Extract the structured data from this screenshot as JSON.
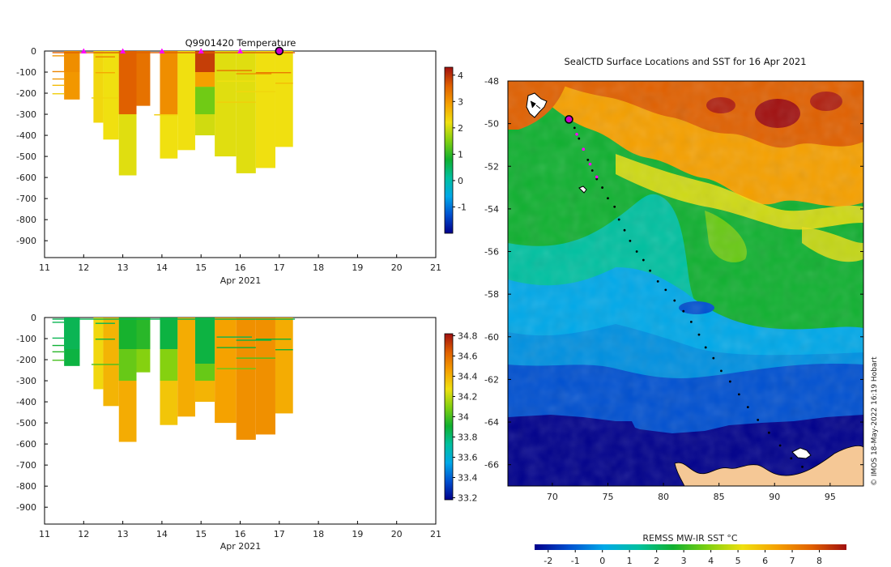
{
  "chart_data": [
    {
      "type": "heatmap",
      "id": "temp",
      "title": "Q9901420  Temperature",
      "xlabel": "Apr 2021",
      "xlim": [
        11,
        21
      ],
      "ylim": [
        -980,
        0
      ],
      "x_ticks": [
        11,
        12,
        13,
        14,
        15,
        16,
        17,
        18,
        19,
        20,
        21
      ],
      "y_ticks": [
        0,
        -100,
        -200,
        -300,
        -400,
        -500,
        -600,
        -700,
        -800,
        -900
      ],
      "colorbar": {
        "min": -2,
        "max": 4.3,
        "ticks": [
          4,
          3,
          2,
          1,
          0,
          -1
        ],
        "stops": [
          "#00008b",
          "#0050d0",
          "#00a8e8",
          "#00c0a0",
          "#10b030",
          "#80d010",
          "#f0e010",
          "#f5a000",
          "#e06000",
          "#a01010"
        ]
      },
      "surface_markers": [
        12,
        13,
        14,
        15,
        16
      ],
      "current_marker": 17,
      "columns": [
        {
          "x0": 11.5,
          "x1": 11.9,
          "depth": 230,
          "value": 3.0
        },
        {
          "x0": 12.25,
          "x1": 12.5,
          "depth": 340,
          "value": 2.3
        },
        {
          "x0": 12.5,
          "x1": 12.9,
          "depth": 420,
          "value": 2.2
        },
        {
          "x0": 12.9,
          "x1": 13.35,
          "depth": 590,
          "value": 2.1
        },
        {
          "x0": 13.35,
          "x1": 13.7,
          "depth": 260,
          "value": 3.4
        },
        {
          "x0": 13.95,
          "x1": 14.4,
          "depth": 510,
          "value": 2.2
        },
        {
          "x0": 14.4,
          "x1": 14.85,
          "depth": 470,
          "value": 2.2
        },
        {
          "x0": 14.85,
          "x1": 15.35,
          "depth": 400,
          "value": 2.0
        },
        {
          "x0": 15.35,
          "x1": 15.9,
          "depth": 500,
          "value": 2.1
        },
        {
          "x0": 15.9,
          "x1": 16.4,
          "depth": 580,
          "value": 2.1
        },
        {
          "x0": 16.4,
          "x1": 16.9,
          "depth": 555,
          "value": 2.2
        },
        {
          "x0": 16.9,
          "x1": 17.35,
          "depth": 455,
          "value": 2.2
        }
      ],
      "upper_patches": [
        {
          "x0": 12.9,
          "x1": 13.35,
          "d0": 0,
          "d1": 300,
          "value": 3.6
        },
        {
          "x0": 13.95,
          "x1": 14.4,
          "d0": 0,
          "d1": 300,
          "value": 3.1
        },
        {
          "x0": 14.85,
          "x1": 15.35,
          "d0": 0,
          "d1": 100,
          "value": 3.9
        },
        {
          "x0": 14.85,
          "x1": 15.35,
          "d0": 100,
          "d1": 170,
          "value": 2.9
        },
        {
          "x0": 14.85,
          "x1": 15.35,
          "d0": 170,
          "d1": 300,
          "value": 1.4
        },
        {
          "x0": 11.5,
          "x1": 11.9,
          "d0": 0,
          "d1": 100,
          "value": 3.1
        }
      ],
      "profile_lines": [
        {
          "x0": 11.2,
          "x1": 11.5,
          "depth": 20,
          "value": 3.0
        },
        {
          "x0": 11.2,
          "x1": 11.5,
          "depth": 95,
          "value": 3.2
        },
        {
          "x0": 11.2,
          "x1": 11.5,
          "depth": 130,
          "value": 3.0
        },
        {
          "x0": 11.2,
          "x1": 11.5,
          "depth": 160,
          "value": 2.6
        },
        {
          "x0": 11.2,
          "x1": 11.5,
          "depth": 200,
          "value": 2.4
        },
        {
          "x0": 12.3,
          "x1": 12.8,
          "depth": 25,
          "value": 3.2
        },
        {
          "x0": 12.3,
          "x1": 12.8,
          "depth": 100,
          "value": 2.8
        },
        {
          "x0": 12.2,
          "x1": 12.9,
          "depth": 220,
          "value": 2.3
        },
        {
          "x0": 15.4,
          "x1": 16.3,
          "depth": 90,
          "value": 3.4
        },
        {
          "x0": 15.9,
          "x1": 16.8,
          "depth": 105,
          "value": 3.1
        },
        {
          "x0": 16.4,
          "x1": 17.3,
          "depth": 100,
          "value": 3.3
        },
        {
          "x0": 16.9,
          "x1": 17.35,
          "depth": 150,
          "value": 2.6
        },
        {
          "x0": 15.4,
          "x1": 16.4,
          "depth": 140,
          "value": 2.2
        },
        {
          "x0": 15.9,
          "x1": 16.9,
          "depth": 190,
          "value": 2.3
        },
        {
          "x0": 13.8,
          "x1": 14.4,
          "depth": 300,
          "value": 2.4
        },
        {
          "x0": 15.4,
          "x1": 16.4,
          "depth": 240,
          "value": 2.4
        },
        {
          "x0": 11.2,
          "x1": 17.4,
          "depth": 5,
          "value": 3.6
        }
      ]
    },
    {
      "type": "heatmap",
      "id": "sal",
      "title": "",
      "xlabel": "Apr 2021",
      "xlim": [
        11,
        21
      ],
      "ylim": [
        -980,
        0
      ],
      "x_ticks": [
        11,
        12,
        13,
        14,
        15,
        16,
        17,
        18,
        19,
        20,
        21
      ],
      "y_ticks": [
        0,
        -100,
        -200,
        -300,
        -400,
        -500,
        -600,
        -700,
        -800,
        -900
      ],
      "colorbar": {
        "min": 33.18,
        "max": 34.82,
        "ticks": [
          34.8,
          34.6,
          34.4,
          34.2,
          34,
          33.8,
          33.6,
          33.4,
          33.2
        ],
        "stops": [
          "#00008b",
          "#0050d0",
          "#00a8e8",
          "#00c0a0",
          "#10b030",
          "#80d010",
          "#f0e010",
          "#f5a000",
          "#e06000",
          "#a01010"
        ]
      },
      "columns": [
        {
          "x0": 11.5,
          "x1": 11.9,
          "depth": 230,
          "value": 33.88
        },
        {
          "x0": 12.25,
          "x1": 12.5,
          "depth": 340,
          "value": 34.3
        },
        {
          "x0": 12.5,
          "x1": 12.9,
          "depth": 420,
          "value": 34.4
        },
        {
          "x0": 12.9,
          "x1": 13.35,
          "depth": 590,
          "value": 34.42
        },
        {
          "x0": 13.35,
          "x1": 13.7,
          "depth": 260,
          "value": 34.1
        },
        {
          "x0": 13.95,
          "x1": 14.4,
          "depth": 510,
          "value": 34.35
        },
        {
          "x0": 14.4,
          "x1": 14.85,
          "depth": 470,
          "value": 34.42
        },
        {
          "x0": 14.85,
          "x1": 15.35,
          "depth": 400,
          "value": 34.4
        },
        {
          "x0": 15.35,
          "x1": 15.9,
          "depth": 500,
          "value": 34.45
        },
        {
          "x0": 15.9,
          "x1": 16.4,
          "depth": 580,
          "value": 34.5
        },
        {
          "x0": 16.4,
          "x1": 16.9,
          "depth": 555,
          "value": 34.5
        },
        {
          "x0": 16.9,
          "x1": 17.35,
          "depth": 455,
          "value": 34.42
        }
      ],
      "upper_patches": [
        {
          "x0": 12.9,
          "x1": 13.35,
          "d0": 0,
          "d1": 150,
          "value": 33.92
        },
        {
          "x0": 12.9,
          "x1": 13.35,
          "d0": 150,
          "d1": 300,
          "value": 34.05
        },
        {
          "x0": 13.35,
          "x1": 13.7,
          "d0": 0,
          "d1": 150,
          "value": 33.95
        },
        {
          "x0": 13.95,
          "x1": 14.4,
          "d0": 0,
          "d1": 150,
          "value": 33.88
        },
        {
          "x0": 13.95,
          "x1": 14.4,
          "d0": 150,
          "d1": 300,
          "value": 34.1
        },
        {
          "x0": 14.85,
          "x1": 15.35,
          "d0": 0,
          "d1": 220,
          "value": 33.88
        },
        {
          "x0": 14.85,
          "x1": 15.35,
          "d0": 220,
          "d1": 300,
          "value": 34.05
        },
        {
          "x0": 11.5,
          "x1": 11.9,
          "d0": 0,
          "d1": 150,
          "value": 33.85
        }
      ],
      "profile_lines": [
        {
          "x0": 11.2,
          "x1": 11.5,
          "depth": 20,
          "value": 33.85
        },
        {
          "x0": 11.2,
          "x1": 11.5,
          "depth": 95,
          "value": 33.85
        },
        {
          "x0": 11.2,
          "x1": 11.5,
          "depth": 130,
          "value": 33.9
        },
        {
          "x0": 11.2,
          "x1": 11.5,
          "depth": 160,
          "value": 33.95
        },
        {
          "x0": 11.2,
          "x1": 11.5,
          "depth": 200,
          "value": 34.0
        },
        {
          "x0": 12.3,
          "x1": 12.8,
          "depth": 25,
          "value": 33.85
        },
        {
          "x0": 12.3,
          "x1": 12.8,
          "depth": 100,
          "value": 33.88
        },
        {
          "x0": 12.2,
          "x1": 12.9,
          "depth": 220,
          "value": 34.0
        },
        {
          "x0": 15.4,
          "x1": 16.3,
          "depth": 90,
          "value": 33.85
        },
        {
          "x0": 15.9,
          "x1": 16.8,
          "depth": 105,
          "value": 33.88
        },
        {
          "x0": 16.4,
          "x1": 17.3,
          "depth": 100,
          "value": 33.9
        },
        {
          "x0": 16.9,
          "x1": 17.35,
          "depth": 150,
          "value": 33.9
        },
        {
          "x0": 15.4,
          "x1": 16.4,
          "depth": 140,
          "value": 33.9
        },
        {
          "x0": 15.9,
          "x1": 16.9,
          "depth": 190,
          "value": 34.0
        },
        {
          "x0": 15.4,
          "x1": 16.4,
          "depth": 240,
          "value": 34.05
        },
        {
          "x0": 11.2,
          "x1": 17.4,
          "depth": 5,
          "value": 33.85
        }
      ]
    },
    {
      "type": "heatmap",
      "id": "map",
      "title": "SealCTD Surface Locations and SST for 16 Apr 2021",
      "xlim": [
        66,
        98
      ],
      "ylim": [
        -67,
        -48
      ],
      "x_ticks": [
        70,
        75,
        80,
        85,
        90,
        95
      ],
      "y_ticks": [
        -48,
        -50,
        -52,
        -54,
        -56,
        -58,
        -60,
        -62,
        -64,
        -66
      ],
      "colorbar": {
        "label": "REMSS MW-IR SST °C",
        "min": -2.5,
        "max": 9,
        "ticks": [
          -2,
          -1,
          0,
          1,
          2,
          3,
          4,
          5,
          6,
          7,
          8
        ],
        "stops": [
          "#00008b",
          "#0050d0",
          "#00a8e8",
          "#00c0a0",
          "#10b030",
          "#80d010",
          "#f0e010",
          "#f5a000",
          "#e06000",
          "#a01010"
        ]
      },
      "track": [
        [
          71.5,
          -49.7
        ],
        [
          72.0,
          -50.2
        ],
        [
          72.4,
          -50.7
        ],
        [
          72.8,
          -51.2
        ],
        [
          73.2,
          -51.7
        ],
        [
          73.6,
          -52.2
        ],
        [
          74.0,
          -52.6
        ],
        [
          74.5,
          -53.0
        ],
        [
          75.0,
          -53.5
        ],
        [
          75.6,
          -53.9
        ],
        [
          76.0,
          -54.5
        ],
        [
          76.5,
          -55.0
        ],
        [
          77.0,
          -55.5
        ],
        [
          77.6,
          -56.0
        ],
        [
          78.2,
          -56.4
        ],
        [
          78.8,
          -56.9
        ],
        [
          79.5,
          -57.4
        ],
        [
          80.2,
          -57.8
        ],
        [
          81.0,
          -58.3
        ],
        [
          81.8,
          -58.8
        ],
        [
          82.5,
          -59.3
        ],
        [
          83.2,
          -59.9
        ],
        [
          83.8,
          -60.5
        ],
        [
          84.5,
          -61.0
        ],
        [
          85.2,
          -61.6
        ],
        [
          86.0,
          -62.1
        ],
        [
          86.8,
          -62.7
        ],
        [
          87.6,
          -63.3
        ],
        [
          88.5,
          -63.9
        ],
        [
          89.5,
          -64.5
        ],
        [
          90.5,
          -65.1
        ],
        [
          91.5,
          -65.7
        ],
        [
          92.5,
          -66.1
        ]
      ],
      "recent_track": [
        [
          71.5,
          -49.7
        ],
        [
          72.2,
          -50.5
        ],
        [
          72.8,
          -51.2
        ],
        [
          73.4,
          -51.9
        ],
        [
          74.0,
          -52.5
        ]
      ],
      "current_position": [
        71.5,
        -49.8
      ],
      "credit": "© IMOS 18-May-2022 16:19 Hobart"
    }
  ]
}
